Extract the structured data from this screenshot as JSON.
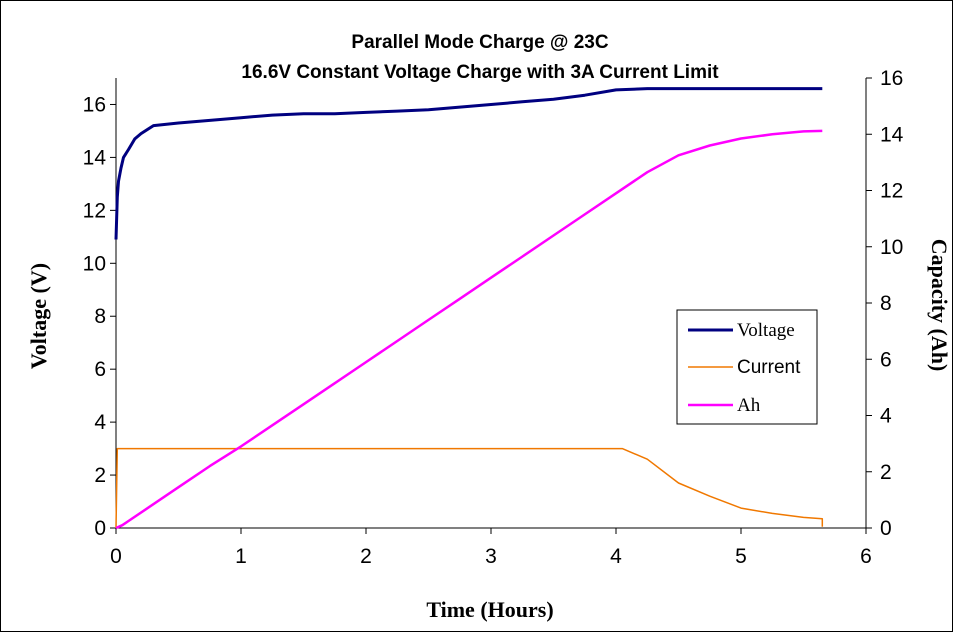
{
  "chart_data": {
    "type": "line",
    "title": "Parallel Mode Charge @ 23C",
    "subtitle": "16.6V Constant Voltage Charge with 3A Current Limit",
    "xlabel": "Time (Hours)",
    "ylabel": "Voltage (V)",
    "y2label": "Capacity (Ah)",
    "xlim": [
      0,
      6
    ],
    "ylim": [
      0,
      17
    ],
    "y2lim": [
      0,
      16
    ],
    "x_ticks": [
      "0",
      "1",
      "2",
      "3",
      "4",
      "5",
      "6"
    ],
    "y_ticks": [
      "0",
      "2",
      "4",
      "6",
      "8",
      "10",
      "12",
      "14",
      "16"
    ],
    "y2_ticks": [
      "0",
      "2",
      "4",
      "6",
      "8",
      "10",
      "12",
      "14",
      "16"
    ],
    "grid": false,
    "legend_position": "right",
    "series": [
      {
        "name": "Voltage",
        "axis": "left",
        "color": "#000080",
        "x": [
          0,
          0.01,
          0.02,
          0.04,
          0.06,
          0.1,
          0.15,
          0.2,
          0.3,
          0.5,
          0.75,
          1.0,
          1.25,
          1.5,
          1.75,
          2.0,
          2.25,
          2.5,
          2.75,
          3.0,
          3.25,
          3.5,
          3.75,
          4.0,
          4.25,
          4.5,
          4.75,
          5.0,
          5.25,
          5.5,
          5.65
        ],
        "values": [
          10.9,
          12.5,
          13.1,
          13.6,
          14.0,
          14.3,
          14.7,
          14.9,
          15.2,
          15.3,
          15.4,
          15.5,
          15.6,
          15.65,
          15.65,
          15.7,
          15.75,
          15.8,
          15.9,
          16.0,
          16.1,
          16.2,
          16.35,
          16.55,
          16.6,
          16.6,
          16.6,
          16.6,
          16.6,
          16.6,
          16.6
        ]
      },
      {
        "name": "Current",
        "axis": "left",
        "color": "#f07800",
        "x": [
          0,
          0.01,
          4.05,
          4.25,
          4.5,
          4.75,
          5.0,
          5.25,
          5.5,
          5.65,
          5.65
        ],
        "values": [
          0,
          3.0,
          3.0,
          2.6,
          1.7,
          1.2,
          0.75,
          0.55,
          0.4,
          0.35,
          0.05
        ]
      },
      {
        "name": "Ah",
        "axis": "right",
        "color": "#ff00ff",
        "x": [
          0,
          0.05,
          0.1,
          0.25,
          0.5,
          0.75,
          1.0,
          1.25,
          1.5,
          1.75,
          2.0,
          2.25,
          2.5,
          2.75,
          3.0,
          3.25,
          3.5,
          3.75,
          4.0,
          4.25,
          4.5,
          4.75,
          5.0,
          5.25,
          5.5,
          5.65
        ],
        "values": [
          0,
          0.1,
          0.25,
          0.7,
          1.45,
          2.2,
          2.9,
          3.65,
          4.4,
          5.15,
          5.9,
          6.65,
          7.4,
          8.15,
          8.9,
          9.65,
          10.4,
          11.15,
          11.9,
          12.65,
          13.25,
          13.6,
          13.85,
          14.0,
          14.1,
          14.12
        ]
      }
    ]
  }
}
